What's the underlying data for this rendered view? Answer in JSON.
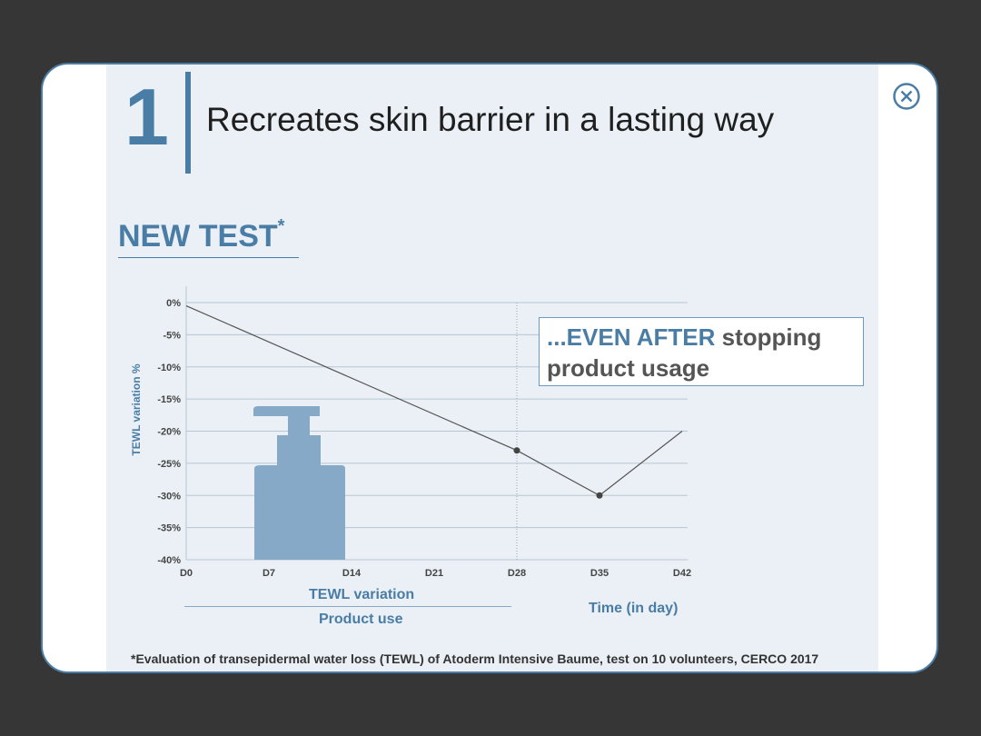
{
  "slide": {
    "number": "1",
    "headline": "Recreates skin barrier in a lasting way",
    "section_title": "NEW TEST",
    "section_title_mark": "*",
    "callout_highlight": "...EVEN AFTER",
    "callout_rest": " stopping product usage",
    "footnote": "*Evaluation of transepidermal water loss (TEWL) of Atoderm Intensive Baume, test on 10 volunteers, CERCO 2017",
    "close_icon": "close-circle-icon"
  },
  "colors": {
    "accent": "#4a7da6",
    "panel_bg": "#eaf0f5",
    "bottle": "#87a9c8",
    "line": "#555555"
  },
  "chart_data": {
    "type": "line",
    "xlabel": "Time (in day)",
    "ylabel": "TEWL variation %",
    "categories": [
      "D0",
      "D7",
      "D14",
      "D21",
      "D28",
      "D35",
      "D42"
    ],
    "yticks": [
      "0%",
      "-5%",
      "-10%",
      "-15%",
      "-20%",
      "-25%",
      "-30%",
      "-35%",
      "-40%"
    ],
    "xlim": [
      0,
      42
    ],
    "ylim": [
      -40,
      0
    ],
    "series": [
      {
        "name": "TEWL variation",
        "points": [
          {
            "x": 0,
            "y": -0.5
          },
          {
            "x": 28,
            "y": -23
          },
          {
            "x": 35,
            "y": -30
          },
          {
            "x": 42,
            "y": -20
          }
        ]
      }
    ],
    "product_use_label": "Product use",
    "product_use_range": [
      0,
      28
    ],
    "grid": true
  }
}
